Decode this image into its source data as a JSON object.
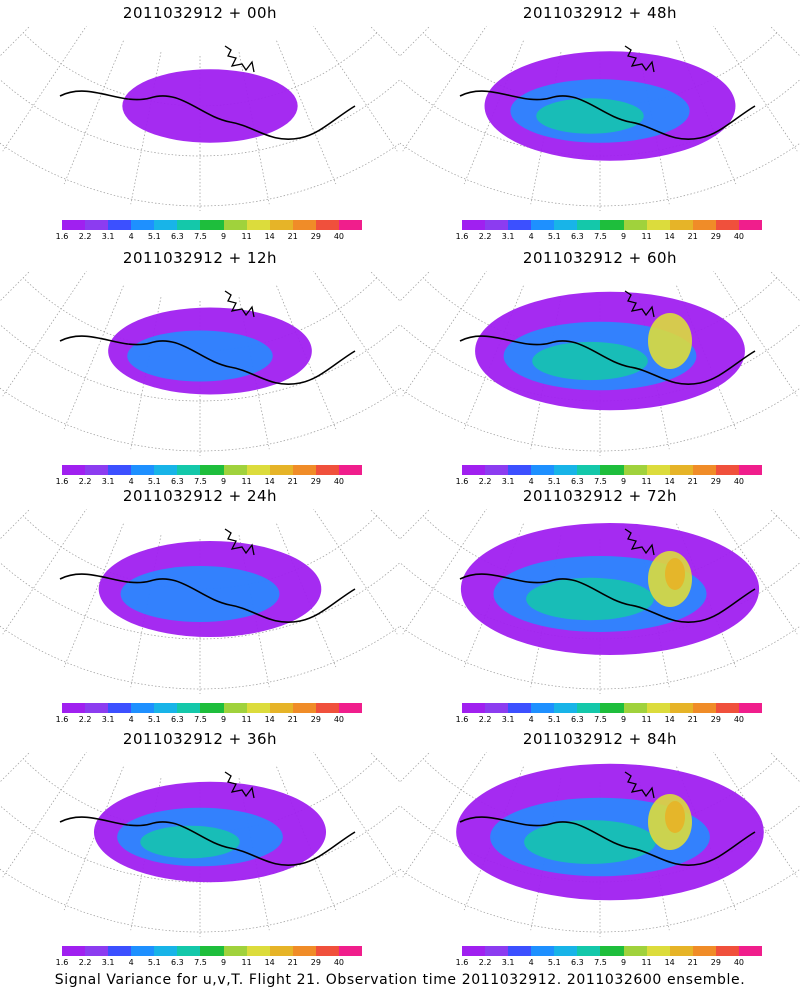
{
  "colorbar": {
    "colors": [
      "#a020f0",
      "#8c3cf0",
      "#3c50ff",
      "#1e90ff",
      "#18b4e8",
      "#14c8aa",
      "#1ebe3c",
      "#a0d23c",
      "#dcdc3c",
      "#e6b428",
      "#f08c28",
      "#f0503c",
      "#f01e8c"
    ],
    "labels": [
      "1.6",
      "2.2",
      "3.1",
      "4",
      "5.1",
      "6.3",
      "7.5",
      "9",
      "11",
      "14",
      "21",
      "29",
      "40"
    ]
  },
  "panels": [
    {
      "title": "2011032912 + 00h",
      "intensity": 0.15
    },
    {
      "title": "2011032912 + 48h",
      "intensity": 0.55
    },
    {
      "title": "2011032912 + 12h",
      "intensity": 0.3
    },
    {
      "title": "2011032912 + 60h",
      "intensity": 0.65
    },
    {
      "title": "2011032912 + 24h",
      "intensity": 0.4
    },
    {
      "title": "2011032912 + 72h",
      "intensity": 0.8
    },
    {
      "title": "2011032912 + 36h",
      "intensity": 0.45
    },
    {
      "title": "2011032912 + 84h",
      "intensity": 0.85
    }
  ],
  "footer": "Signal Variance for u,v,T. Flight 21. Observation time 2011032912. 2011032600 ensemble."
}
